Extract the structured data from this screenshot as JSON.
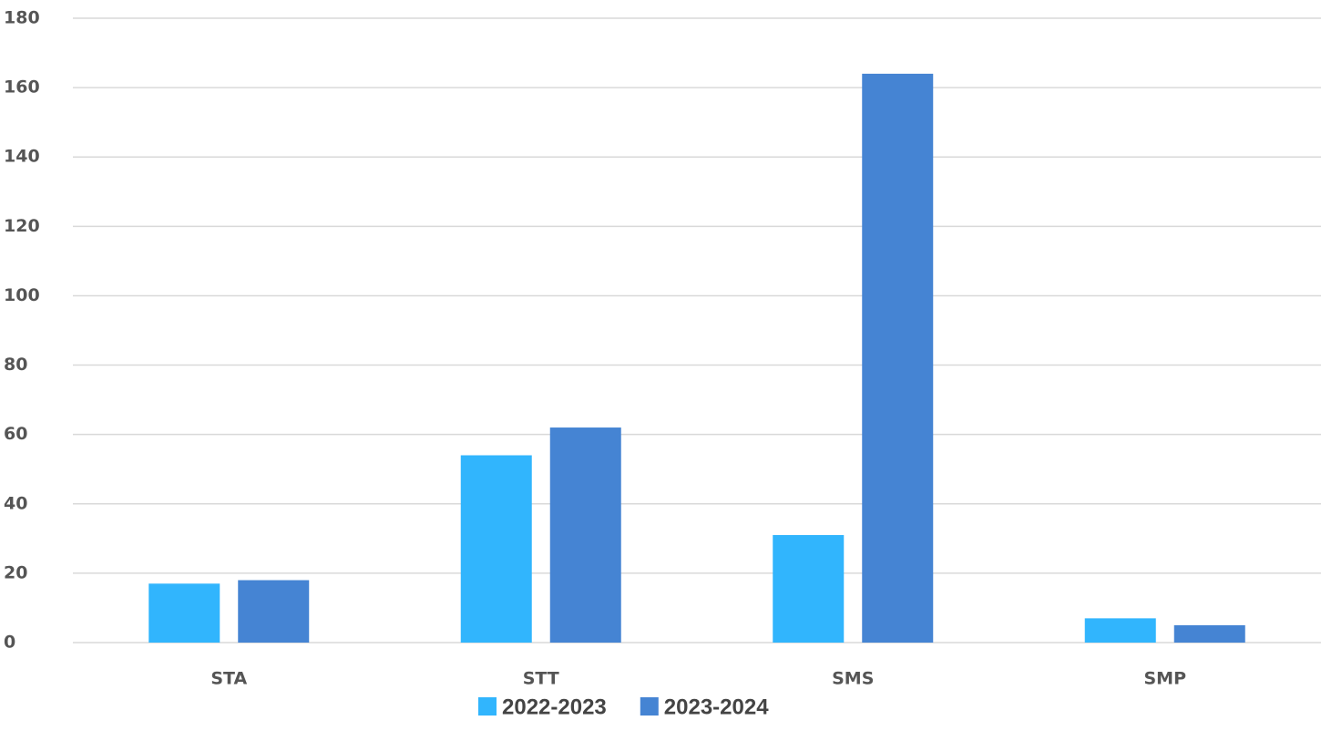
{
  "chart_data": {
    "type": "bar",
    "categories": [
      "STA",
      "STT",
      "SMS",
      "SMP"
    ],
    "series": [
      {
        "name": "2022-2023",
        "color": "#31b5fd",
        "values": [
          17,
          54,
          31,
          7
        ]
      },
      {
        "name": "2023-2024",
        "color": "#4584d3",
        "values": [
          18,
          62,
          164,
          5
        ]
      }
    ],
    "ylim": [
      0,
      180
    ],
    "yticks": [
      0,
      20,
      40,
      60,
      80,
      100,
      120,
      140,
      160,
      180
    ],
    "grid": true,
    "legend": "bottom"
  }
}
